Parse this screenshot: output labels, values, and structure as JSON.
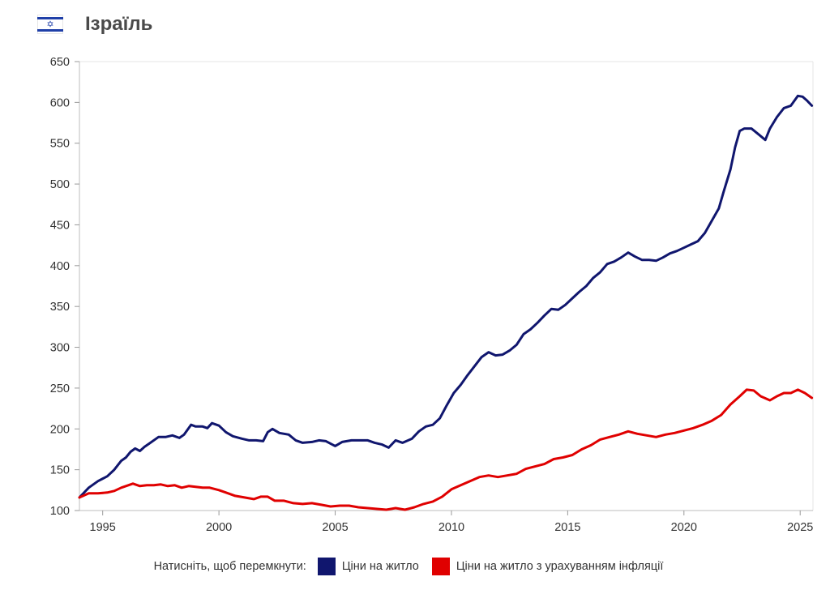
{
  "header": {
    "title": "Ізраїль",
    "flag_icon": "israel-flag-icon",
    "flag_star": "✡"
  },
  "legend": {
    "prompt": "Натисніть, щоб перемкнути:",
    "items": [
      {
        "label": "Ціни на житло",
        "color": "#10166e"
      },
      {
        "label": "Ціни на житло з урахуванням інфляції",
        "color": "#e00000"
      }
    ]
  },
  "chart_data": {
    "type": "line",
    "title": "",
    "xlabel": "",
    "ylabel": "",
    "xlim": [
      1994.0,
      2025.55
    ],
    "ylim": [
      100,
      650
    ],
    "x_ticks": [
      "1995",
      "2000",
      "2005",
      "2010",
      "2015",
      "2020",
      "2025"
    ],
    "x_tick_values": [
      1995,
      2000,
      2005,
      2010,
      2015,
      2020,
      2025
    ],
    "y_ticks": [
      "100",
      "150",
      "200",
      "250",
      "300",
      "350",
      "400",
      "450",
      "500",
      "550",
      "600",
      "650"
    ],
    "y_tick_values": [
      100,
      150,
      200,
      250,
      300,
      350,
      400,
      450,
      500,
      550,
      600,
      650
    ],
    "grid": "none",
    "series": [
      {
        "name": "Ціни на житло",
        "color": "#10166e",
        "points": [
          [
            1994.0,
            116
          ],
          [
            1994.4,
            128
          ],
          [
            1994.8,
            136
          ],
          [
            1995.2,
            142
          ],
          [
            1995.5,
            150
          ],
          [
            1995.8,
            161
          ],
          [
            1996.0,
            165
          ],
          [
            1996.2,
            172
          ],
          [
            1996.4,
            176
          ],
          [
            1996.6,
            173
          ],
          [
            1996.8,
            178
          ],
          [
            1997.0,
            182
          ],
          [
            1997.4,
            190
          ],
          [
            1997.7,
            190
          ],
          [
            1998.0,
            192
          ],
          [
            1998.3,
            189
          ],
          [
            1998.5,
            193
          ],
          [
            1998.8,
            205
          ],
          [
            1999.0,
            203
          ],
          [
            1999.3,
            203
          ],
          [
            1999.5,
            201
          ],
          [
            1999.7,
            207
          ],
          [
            2000.0,
            204
          ],
          [
            2000.3,
            196
          ],
          [
            2000.6,
            191
          ],
          [
            2001.0,
            188
          ],
          [
            2001.3,
            186
          ],
          [
            2001.6,
            186
          ],
          [
            2001.9,
            185
          ],
          [
            2002.1,
            196
          ],
          [
            2002.3,
            200
          ],
          [
            2002.6,
            195
          ],
          [
            2003.0,
            193
          ],
          [
            2003.3,
            186
          ],
          [
            2003.6,
            183
          ],
          [
            2004.0,
            184
          ],
          [
            2004.3,
            186
          ],
          [
            2004.6,
            185
          ],
          [
            2005.0,
            179
          ],
          [
            2005.3,
            184
          ],
          [
            2005.7,
            186
          ],
          [
            2006.0,
            186
          ],
          [
            2006.4,
            186
          ],
          [
            2006.7,
            183
          ],
          [
            2007.0,
            181
          ],
          [
            2007.3,
            177
          ],
          [
            2007.6,
            186
          ],
          [
            2007.9,
            183
          ],
          [
            2008.3,
            188
          ],
          [
            2008.6,
            197
          ],
          [
            2008.9,
            203
          ],
          [
            2009.2,
            205
          ],
          [
            2009.5,
            213
          ],
          [
            2009.8,
            229
          ],
          [
            2010.1,
            244
          ],
          [
            2010.4,
            254
          ],
          [
            2010.7,
            266
          ],
          [
            2011.0,
            277
          ],
          [
            2011.3,
            288
          ],
          [
            2011.6,
            294
          ],
          [
            2011.9,
            290
          ],
          [
            2012.2,
            291
          ],
          [
            2012.5,
            296
          ],
          [
            2012.8,
            303
          ],
          [
            2013.1,
            316
          ],
          [
            2013.4,
            322
          ],
          [
            2013.7,
            330
          ],
          [
            2014.0,
            339
          ],
          [
            2014.3,
            347
          ],
          [
            2014.6,
            346
          ],
          [
            2014.9,
            352
          ],
          [
            2015.2,
            360
          ],
          [
            2015.5,
            368
          ],
          [
            2015.8,
            375
          ],
          [
            2016.1,
            385
          ],
          [
            2016.4,
            392
          ],
          [
            2016.7,
            402
          ],
          [
            2017.0,
            405
          ],
          [
            2017.3,
            410
          ],
          [
            2017.6,
            416
          ],
          [
            2017.9,
            411
          ],
          [
            2018.2,
            407
          ],
          [
            2018.5,
            407
          ],
          [
            2018.8,
            406
          ],
          [
            2019.1,
            410
          ],
          [
            2019.4,
            415
          ],
          [
            2019.7,
            418
          ],
          [
            2020.0,
            422
          ],
          [
            2020.3,
            426
          ],
          [
            2020.6,
            430
          ],
          [
            2020.9,
            440
          ],
          [
            2021.2,
            455
          ],
          [
            2021.5,
            470
          ],
          [
            2021.7,
            490
          ],
          [
            2022.0,
            518
          ],
          [
            2022.2,
            545
          ],
          [
            2022.4,
            565
          ],
          [
            2022.6,
            568
          ],
          [
            2022.9,
            568
          ],
          [
            2023.2,
            561
          ],
          [
            2023.5,
            554
          ],
          [
            2023.7,
            568
          ],
          [
            2024.0,
            582
          ],
          [
            2024.3,
            593
          ],
          [
            2024.6,
            596
          ],
          [
            2024.9,
            608
          ],
          [
            2025.1,
            607
          ],
          [
            2025.3,
            602
          ],
          [
            2025.5,
            596
          ]
        ]
      },
      {
        "name": "Ціни на житло з урахуванням інфляції",
        "color": "#e00000",
        "points": [
          [
            1994.0,
            116
          ],
          [
            1994.4,
            121
          ],
          [
            1994.8,
            121
          ],
          [
            1995.2,
            122
          ],
          [
            1995.5,
            124
          ],
          [
            1995.8,
            128
          ],
          [
            1996.0,
            130
          ],
          [
            1996.3,
            133
          ],
          [
            1996.6,
            130
          ],
          [
            1996.9,
            131
          ],
          [
            1997.2,
            131
          ],
          [
            1997.5,
            132
          ],
          [
            1997.8,
            130
          ],
          [
            1998.1,
            131
          ],
          [
            1998.4,
            128
          ],
          [
            1998.7,
            130
          ],
          [
            1999.0,
            129
          ],
          [
            1999.3,
            128
          ],
          [
            1999.6,
            128
          ],
          [
            2000.0,
            125
          ],
          [
            2000.3,
            122
          ],
          [
            2000.7,
            118
          ],
          [
            2001.1,
            116
          ],
          [
            2001.5,
            114
          ],
          [
            2001.8,
            117
          ],
          [
            2002.1,
            117
          ],
          [
            2002.4,
            112
          ],
          [
            2002.8,
            112
          ],
          [
            2003.2,
            109
          ],
          [
            2003.6,
            108
          ],
          [
            2004.0,
            109
          ],
          [
            2004.4,
            107
          ],
          [
            2004.8,
            105
          ],
          [
            2005.2,
            106
          ],
          [
            2005.6,
            106
          ],
          [
            2006.0,
            104
          ],
          [
            2006.4,
            103
          ],
          [
            2006.8,
            102
          ],
          [
            2007.2,
            101
          ],
          [
            2007.6,
            103
          ],
          [
            2008.0,
            101
          ],
          [
            2008.4,
            104
          ],
          [
            2008.8,
            108
          ],
          [
            2009.2,
            111
          ],
          [
            2009.6,
            117
          ],
          [
            2010.0,
            126
          ],
          [
            2010.4,
            131
          ],
          [
            2010.8,
            136
          ],
          [
            2011.2,
            141
          ],
          [
            2011.6,
            143
          ],
          [
            2012.0,
            141
          ],
          [
            2012.4,
            143
          ],
          [
            2012.8,
            145
          ],
          [
            2013.2,
            151
          ],
          [
            2013.6,
            154
          ],
          [
            2014.0,
            157
          ],
          [
            2014.4,
            163
          ],
          [
            2014.8,
            165
          ],
          [
            2015.2,
            168
          ],
          [
            2015.6,
            175
          ],
          [
            2016.0,
            180
          ],
          [
            2016.4,
            187
          ],
          [
            2016.8,
            190
          ],
          [
            2017.2,
            193
          ],
          [
            2017.6,
            197
          ],
          [
            2018.0,
            194
          ],
          [
            2018.4,
            192
          ],
          [
            2018.8,
            190
          ],
          [
            2019.2,
            193
          ],
          [
            2019.6,
            195
          ],
          [
            2020.0,
            198
          ],
          [
            2020.4,
            201
          ],
          [
            2020.8,
            205
          ],
          [
            2021.2,
            210
          ],
          [
            2021.6,
            217
          ],
          [
            2022.0,
            230
          ],
          [
            2022.4,
            240
          ],
          [
            2022.7,
            248
          ],
          [
            2023.0,
            247
          ],
          [
            2023.3,
            240
          ],
          [
            2023.7,
            235
          ],
          [
            2024.0,
            240
          ],
          [
            2024.3,
            244
          ],
          [
            2024.6,
            244
          ],
          [
            2024.9,
            248
          ],
          [
            2025.2,
            244
          ],
          [
            2025.5,
            238
          ]
        ]
      }
    ]
  }
}
